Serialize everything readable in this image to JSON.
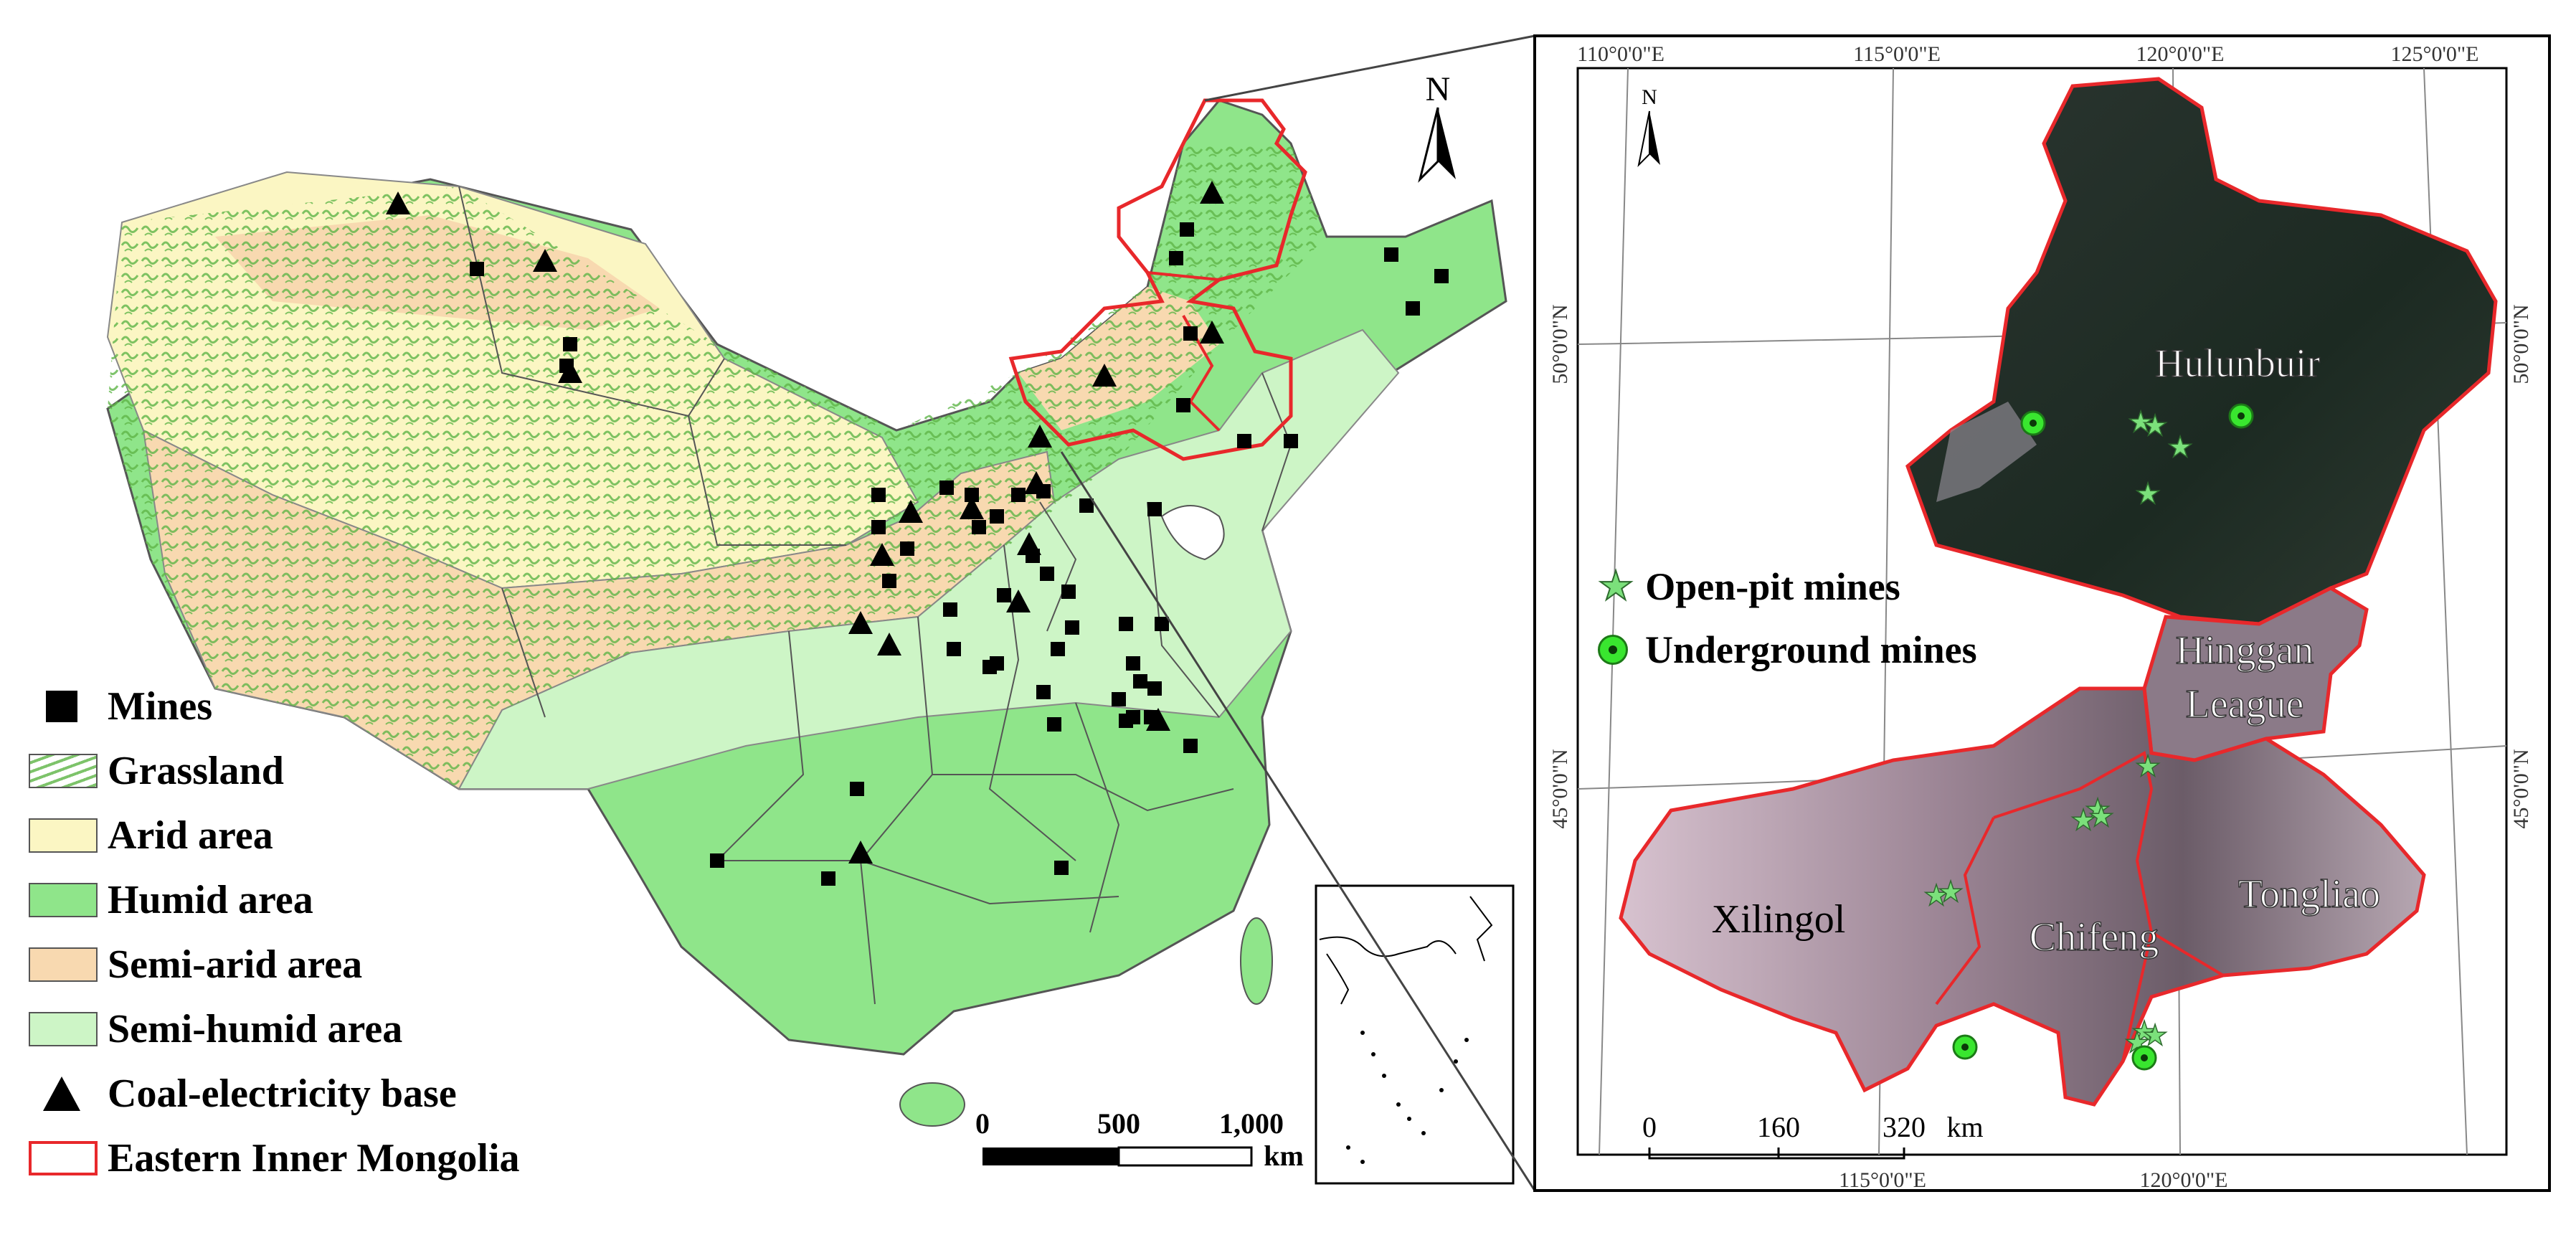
{
  "map_main": {
    "north_label": "N",
    "scale": {
      "ticks": [
        "0",
        "500",
        "1,000"
      ],
      "unit": "km"
    },
    "legend": [
      {
        "id": "mines",
        "label": "Mines",
        "symbol": "square",
        "color": "#000000"
      },
      {
        "id": "grassland",
        "label": "Grassland",
        "symbol": "hatch",
        "color": "#7dc36a"
      },
      {
        "id": "arid",
        "label": "Arid area",
        "symbol": "fill",
        "color": "#fbf6c3"
      },
      {
        "id": "humid",
        "label": "Humid area",
        "symbol": "fill",
        "color": "#8fe58a"
      },
      {
        "id": "semi_arid",
        "label": "Semi-arid area",
        "symbol": "fill",
        "color": "#f8d9b0"
      },
      {
        "id": "semi_humid",
        "label": "Semi-humid area",
        "symbol": "fill",
        "color": "#cdf5c6"
      },
      {
        "id": "coal_base",
        "label": "Coal-electricity base",
        "symbol": "triangle",
        "color": "#000000"
      },
      {
        "id": "eastern_im",
        "label": "Eastern Inner Mongolia",
        "symbol": "outline",
        "color": "#e8282b"
      }
    ]
  },
  "map_inset": {
    "north_label": "N",
    "top_graticule": [
      "110°0'0\"E",
      "115°0'0\"E",
      "120°0'0\"E",
      "125°0'0\"E"
    ],
    "bottom_graticule": [
      "115°0'0\"E",
      "120°0'0\"E"
    ],
    "left_graticule": [
      "50°0'0\"N",
      "45°0'0\"N"
    ],
    "right_graticule": [
      "50°0'0\"N",
      "45°0'0\"N"
    ],
    "regions": [
      "Hulunbuir",
      "Hinggan",
      "League",
      "Xilingol",
      "Chifeng",
      "Tongliao"
    ],
    "legend": [
      {
        "label": "Open-pit mines",
        "symbol": "star",
        "color": "#7be07b"
      },
      {
        "label": "Underground mines",
        "symbol": "circle",
        "color": "#39e62f"
      }
    ],
    "scale": {
      "ticks": [
        "0",
        "160",
        "320"
      ],
      "unit": "km"
    }
  }
}
